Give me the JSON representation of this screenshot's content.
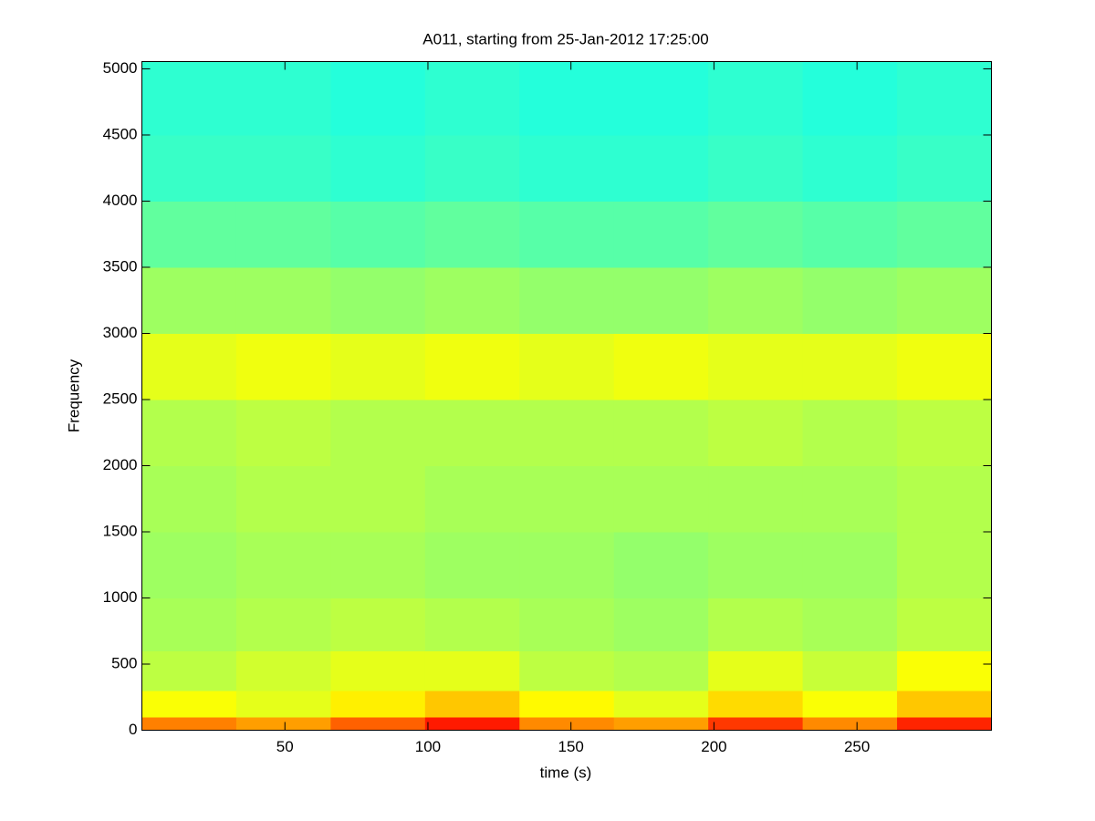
{
  "chart_data": {
    "type": "spectrogram",
    "title": "A011, starting from 25-Jan-2012 17:25:00",
    "x_label": "time (s)",
    "y_label": "Frequency",
    "colormap": "jet",
    "clim": [
      0,
      1
    ],
    "x_bins": [
      0,
      33,
      66,
      99,
      132,
      165,
      198,
      231,
      264,
      297
    ],
    "y_bins": [
      0,
      100,
      300,
      600,
      1000,
      1500,
      2000,
      2500,
      3000,
      3500,
      4000,
      4500,
      5055
    ],
    "values": [
      [
        0.75,
        0.72,
        0.78,
        0.85,
        0.74,
        0.72,
        0.82,
        0.74,
        0.84
      ],
      [
        0.62,
        0.6,
        0.64,
        0.68,
        0.63,
        0.6,
        0.66,
        0.62,
        0.68
      ],
      [
        0.56,
        0.58,
        0.6,
        0.6,
        0.56,
        0.55,
        0.6,
        0.57,
        0.62
      ],
      [
        0.54,
        0.55,
        0.56,
        0.55,
        0.54,
        0.53,
        0.55,
        0.54,
        0.56
      ],
      [
        0.53,
        0.54,
        0.54,
        0.53,
        0.53,
        0.52,
        0.53,
        0.53,
        0.55
      ],
      [
        0.54,
        0.55,
        0.55,
        0.54,
        0.54,
        0.54,
        0.54,
        0.54,
        0.55
      ],
      [
        0.55,
        0.56,
        0.55,
        0.55,
        0.55,
        0.55,
        0.56,
        0.55,
        0.56
      ],
      [
        0.6,
        0.61,
        0.6,
        0.61,
        0.6,
        0.61,
        0.6,
        0.6,
        0.61
      ],
      [
        0.53,
        0.53,
        0.52,
        0.53,
        0.52,
        0.52,
        0.53,
        0.52,
        0.53
      ],
      [
        0.47,
        0.47,
        0.46,
        0.47,
        0.46,
        0.46,
        0.47,
        0.46,
        0.47
      ],
      [
        0.43,
        0.43,
        0.42,
        0.43,
        0.42,
        0.42,
        0.43,
        0.42,
        0.43
      ],
      [
        0.42,
        0.42,
        0.41,
        0.42,
        0.41,
        0.41,
        0.42,
        0.41,
        0.42
      ]
    ],
    "xlim": [
      0,
      297
    ],
    "ylim": [
      0,
      5055
    ],
    "xticks": [
      50,
      100,
      150,
      200,
      250
    ],
    "yticks": [
      0,
      500,
      1000,
      1500,
      2000,
      2500,
      3000,
      3500,
      4000,
      4500,
      5000
    ]
  }
}
